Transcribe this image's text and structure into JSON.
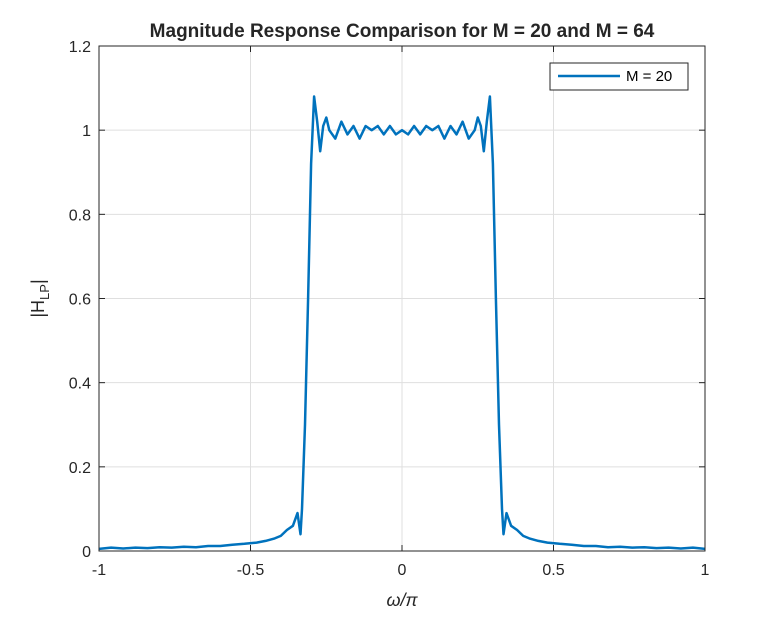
{
  "chart_data": {
    "type": "line",
    "title": "Magnitude Response Comparison for M = 20 and M = 64",
    "xlabel": "ω/π",
    "ylabel": "|H",
    "ylabel_sub": "LP",
    "ylabel_suffix": "|",
    "xlim": [
      -1,
      1
    ],
    "ylim": [
      0,
      1.2
    ],
    "xticks": [
      -1,
      -0.5,
      0,
      0.5,
      1
    ],
    "xtick_labels": [
      "-1",
      "-0.5",
      "0",
      "0.5",
      "1"
    ],
    "yticks": [
      0,
      0.2,
      0.4,
      0.6,
      0.8,
      1,
      1.2
    ],
    "ytick_labels": [
      "0",
      "0.2",
      "0.4",
      "0.6",
      "0.8",
      "1",
      "1.2"
    ],
    "grid": true,
    "legend": {
      "placement": "top-right",
      "entries": [
        "M = 20"
      ]
    },
    "series": [
      {
        "name": "M = 20",
        "color": "#0072BD",
        "x": [
          -1.0,
          -0.96,
          -0.92,
          -0.88,
          -0.84,
          -0.8,
          -0.76,
          -0.72,
          -0.68,
          -0.64,
          -0.6,
          -0.56,
          -0.52,
          -0.48,
          -0.45,
          -0.42,
          -0.4,
          -0.38,
          -0.36,
          -0.345,
          -0.335,
          -0.33,
          -0.32,
          -0.31,
          -0.3,
          -0.29,
          -0.28,
          -0.27,
          -0.26,
          -0.25,
          -0.24,
          -0.22,
          -0.2,
          -0.18,
          -0.16,
          -0.14,
          -0.12,
          -0.1,
          -0.08,
          -0.06,
          -0.04,
          -0.02,
          0.0,
          0.02,
          0.04,
          0.06,
          0.08,
          0.1,
          0.12,
          0.14,
          0.16,
          0.18,
          0.2,
          0.22,
          0.24,
          0.25,
          0.26,
          0.27,
          0.28,
          0.29,
          0.3,
          0.31,
          0.32,
          0.33,
          0.335,
          0.345,
          0.36,
          0.38,
          0.4,
          0.42,
          0.45,
          0.48,
          0.52,
          0.56,
          0.6,
          0.64,
          0.68,
          0.72,
          0.76,
          0.8,
          0.84,
          0.88,
          0.92,
          0.96,
          1.0
        ],
        "y": [
          0.005,
          0.008,
          0.006,
          0.008,
          0.007,
          0.009,
          0.008,
          0.01,
          0.009,
          0.012,
          0.012,
          0.015,
          0.017,
          0.02,
          0.024,
          0.03,
          0.036,
          0.05,
          0.06,
          0.09,
          0.04,
          0.1,
          0.3,
          0.6,
          0.92,
          1.08,
          1.02,
          0.95,
          1.01,
          1.03,
          1.0,
          0.98,
          1.02,
          0.99,
          1.01,
          0.98,
          1.01,
          1.0,
          1.01,
          0.99,
          1.01,
          0.99,
          1.0,
          0.99,
          1.01,
          0.99,
          1.01,
          1.0,
          1.01,
          0.98,
          1.01,
          0.99,
          1.02,
          0.98,
          1.0,
          1.03,
          1.01,
          0.95,
          1.02,
          1.08,
          0.92,
          0.6,
          0.3,
          0.1,
          0.04,
          0.09,
          0.06,
          0.05,
          0.036,
          0.03,
          0.024,
          0.02,
          0.017,
          0.015,
          0.012,
          0.012,
          0.009,
          0.01,
          0.008,
          0.009,
          0.007,
          0.008,
          0.006,
          0.008,
          0.005
        ]
      }
    ]
  }
}
